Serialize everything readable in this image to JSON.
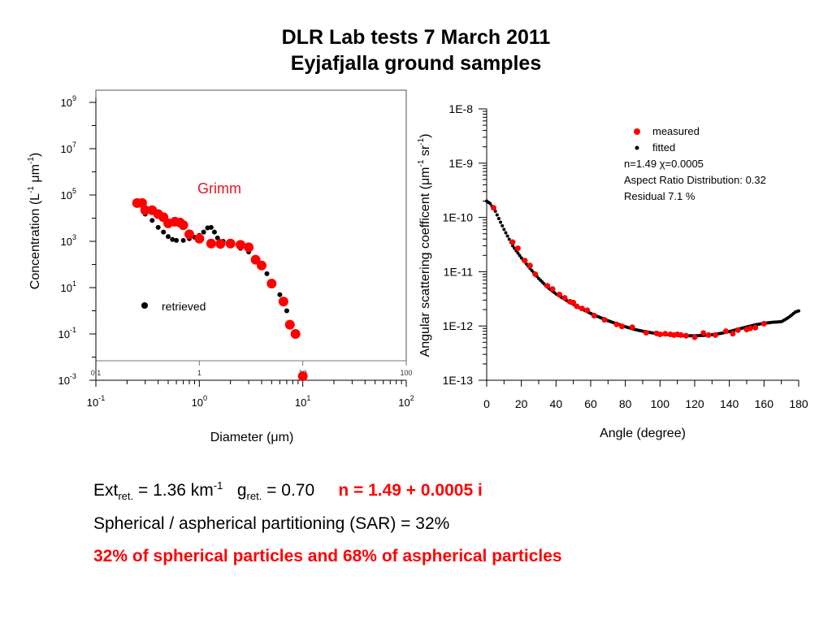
{
  "slide": {
    "title_line1": "DLR Lab tests 7 March 2011",
    "title_line2": "Eyjafjalla  ground samples",
    "ext_label": "Ext",
    "ext_sub": "ret.",
    "ext_eq": " =    1.36 km",
    "ext_sup": "-1",
    "g_label": "g",
    "g_sub": "ret.",
    "g_value": " =  0.70",
    "n_value": "n = 1.49 + 0.0005 i",
    "sar_text": "Spherical / aspherical partitioning (SAR) = 32%",
    "partition_text": "32% of  spherical particles and 68% of aspherical particles"
  },
  "chart_data": [
    {
      "type": "scatter",
      "xscale": "log",
      "yscale": "log",
      "xlim": [
        0.1,
        100
      ],
      "ylim": [
        0.001,
        1000000000
      ],
      "xlabel": "Diameter (μm)",
      "ylabel_text": "Concentration (L",
      "ylabel_sup1": "-1",
      "ylabel_mid": " μm",
      "ylabel_sup2": "-1",
      "ylabel_end": ")",
      "annotation": "Grimm",
      "annotation_color": "#e8141e",
      "xticks": [
        {
          "base": "10",
          "exp": "-1",
          "v": 0.1
        },
        {
          "base": "10",
          "exp": "0",
          "v": 1
        },
        {
          "base": "10",
          "exp": "1",
          "v": 10
        },
        {
          "base": "10",
          "exp": "2",
          "v": 100
        }
      ],
      "yticks": [
        {
          "base": "10",
          "exp": "9",
          "v": 1000000000.0
        },
        {
          "base": "10",
          "exp": "7",
          "v": 10000000.0
        },
        {
          "base": "10",
          "exp": "5",
          "v": 100000.0
        },
        {
          "base": "10",
          "exp": "3",
          "v": 1000
        },
        {
          "base": "10",
          "exp": "1",
          "v": 10
        },
        {
          "base": "10",
          "exp": "-1",
          "v": 0.1
        },
        {
          "base": "10",
          "exp": "-3",
          "v": 0.001
        }
      ],
      "inset_axis_ticks": [
        {
          "label": "0.1",
          "v": 0.1
        },
        {
          "label": "1",
          "v": 1
        },
        {
          "label": "10",
          "v": 10
        },
        {
          "label": "100",
          "v": 100
        }
      ],
      "series": [
        {
          "name": "Grimm",
          "color": "#ff0000",
          "x": [
            0.25,
            0.28,
            0.3,
            0.35,
            0.4,
            0.45,
            0.5,
            0.58,
            0.65,
            0.7,
            0.8,
            1.0,
            1.3,
            1.6,
            2.0,
            2.5,
            3.0,
            3.5,
            4.0,
            5.0,
            6.5,
            7.5,
            8.5,
            10.0
          ],
          "y": [
            45000,
            45000,
            22000,
            22000,
            15000,
            11000,
            6000,
            7000,
            6500,
            5000,
            2000,
            1300,
            800,
            780,
            800,
            700,
            550,
            160,
            90,
            15,
            2.5,
            0.25,
            0.1,
            0.0015
          ]
        },
        {
          "name": "retrieved",
          "color": "#000000",
          "x": [
            0.3,
            0.35,
            0.4,
            0.45,
            0.5,
            0.55,
            0.6,
            0.7,
            0.8,
            0.9,
            1.0,
            1.1,
            1.2,
            1.3,
            1.4,
            1.5,
            1.7,
            2.0,
            2.5,
            3.0,
            3.5,
            4.0,
            4.5,
            5.0,
            6.0,
            7.0
          ],
          "y": [
            15000,
            8000,
            4000,
            2500,
            1600,
            1200,
            1100,
            1100,
            1300,
            1500,
            1800,
            2500,
            3800,
            4000,
            2500,
            1400,
            1000,
            700,
            500,
            350,
            200,
            80,
            40,
            15,
            5,
            1
          ]
        }
      ]
    },
    {
      "type": "scatter",
      "yscale": "log",
      "xlim": [
        0,
        180
      ],
      "ylim": [
        1e-13,
        1e-08
      ],
      "xlabel": "Angle (degree)",
      "ylabel_text": "Angular scattering coefficent (",
      "ylabel_mu": "μm",
      "ylabel_sup1": "-1",
      "ylabel_sr": " sr",
      "ylabel_sup2": "-1",
      "ylabel_end": ")",
      "xticks": [
        "0",
        "20",
        "40",
        "60",
        "80",
        "100",
        "120",
        "140",
        "160",
        "180"
      ],
      "yticks": [
        "1E-8",
        "1E-9",
        "1E-10",
        "1E-11",
        "1E-12",
        "1E-13"
      ],
      "legend": {
        "measured": "measured",
        "fitted": "fitted",
        "info_line1": "n=1.49 χ=0.0005",
        "info_line2": "Aspect Ratio Distribution: 0.32",
        "info_line3": "Residual 7.1 %"
      },
      "fitted_curve": {
        "angle": [
          0,
          2,
          5,
          10,
          15,
          20,
          25,
          30,
          35,
          40,
          45,
          50,
          55,
          60,
          65,
          70,
          75,
          80,
          85,
          90,
          95,
          100,
          105,
          110,
          115,
          120,
          125,
          130,
          135,
          140,
          145,
          150,
          155,
          160,
          165,
          170,
          172,
          175,
          178,
          180
        ],
        "value": [
          2e-10,
          1.8e-10,
          1.3e-10,
          6e-11,
          3e-11,
          1.8e-11,
          1.15e-11,
          7.5e-12,
          5.2e-12,
          3.9e-12,
          3.1e-12,
          2.5e-12,
          2.05e-12,
          1.7e-12,
          1.45e-12,
          1.25e-12,
          1.1e-12,
          9.7e-13,
          8.7e-13,
          8e-13,
          7.5e-13,
          7.1e-13,
          6.9e-13,
          6.7e-13,
          6.6e-13,
          6.6e-13,
          6.7e-13,
          6.9e-13,
          7.3e-13,
          7.9e-13,
          8.7e-13,
          9.6e-13,
          1.05e-12,
          1.12e-12,
          1.17e-12,
          1.2e-12,
          1.3e-12,
          1.5e-12,
          1.8e-12,
          1.9e-12
        ]
      },
      "measured": {
        "angle": [
          4,
          15,
          18,
          22,
          25,
          28,
          35,
          38,
          42,
          45,
          48,
          50,
          52,
          55,
          58,
          62,
          68,
          75,
          78,
          84,
          92,
          98,
          100,
          103,
          106,
          108,
          110,
          112,
          115,
          120,
          125,
          128,
          132,
          138,
          142,
          145,
          150,
          152,
          155,
          160
        ],
        "value": [
          1.5e-10,
          3.5e-11,
          2.7e-11,
          1.6e-11,
          1.3e-11,
          9e-12,
          5.5e-12,
          4.8e-12,
          3.8e-12,
          3.3e-12,
          2.8e-12,
          2.7e-12,
          2.3e-12,
          2.1e-12,
          1.95e-12,
          1.55e-12,
          1.3e-12,
          1.07e-12,
          9.8e-13,
          9.5e-13,
          7.5e-13,
          7.3e-13,
          7e-13,
          7.2e-13,
          7e-13,
          6.8e-13,
          7e-13,
          6.8e-13,
          6.6e-13,
          6.2e-13,
          7.4e-13,
          6.8e-13,
          6.8e-13,
          8e-13,
          7.2e-13,
          8.4e-13,
          8.6e-13,
          9e-13,
          9.3e-13,
          1.1e-12
        ]
      }
    }
  ]
}
